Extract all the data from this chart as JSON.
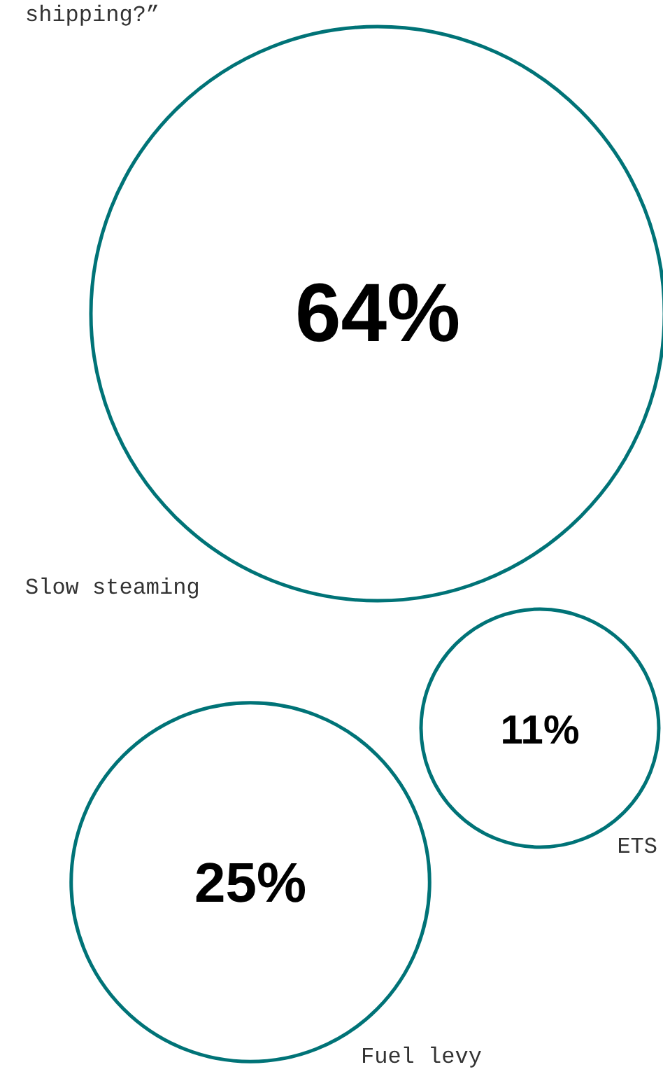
{
  "chart_data": {
    "type": "other",
    "title": "shipping?”",
    "categories": [
      "Slow steaming",
      "ETS",
      "Fuel levy"
    ],
    "values": [
      64,
      11,
      25
    ],
    "value_labels": [
      "64%",
      "11%",
      "25%"
    ],
    "color": "#007377"
  }
}
